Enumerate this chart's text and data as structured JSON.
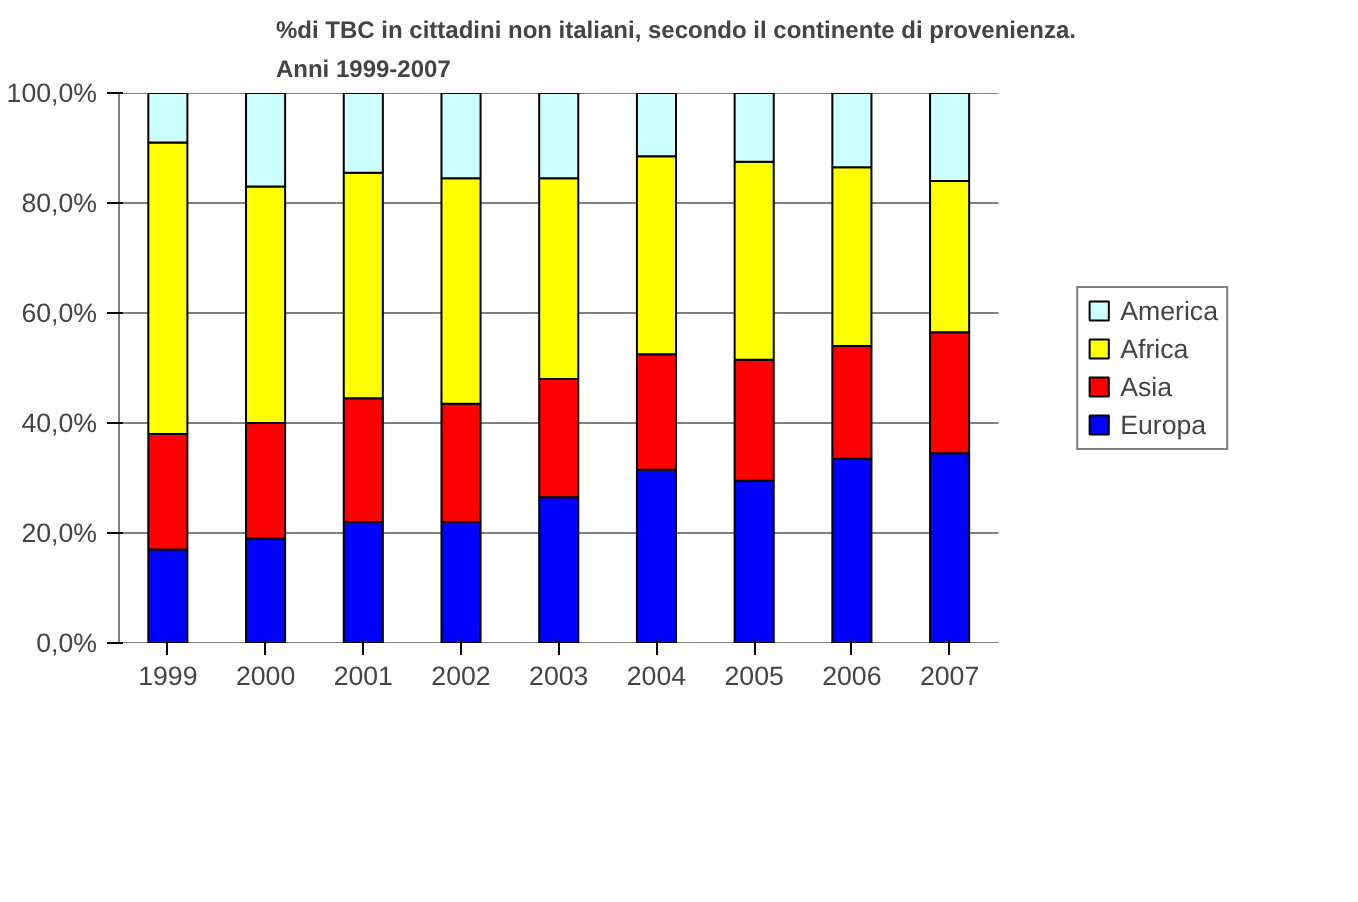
{
  "chart_data": {
    "type": "bar",
    "stacked": true,
    "title": "%di TBC in cittadini non italiani, secondo il continente di provenienza.\nAnni 1999-2007",
    "categories": [
      "1999",
      "2000",
      "2001",
      "2002",
      "2003",
      "2004",
      "2005",
      "2006",
      "2007"
    ],
    "series": [
      {
        "name": "Europa",
        "color": "#0000ff",
        "values": [
          17,
          19,
          22,
          22,
          26.5,
          31.5,
          29.5,
          33.5,
          34.5
        ]
      },
      {
        "name": "Asia",
        "color": "#ff0000",
        "values": [
          21,
          21,
          22.5,
          21.5,
          21.5,
          21,
          22,
          20.5,
          22
        ]
      },
      {
        "name": "Africa",
        "color": "#ffff00",
        "values": [
          53,
          43,
          41,
          41,
          36.5,
          36,
          36,
          32.5,
          27.5
        ]
      },
      {
        "name": "America",
        "color": "#ccffff",
        "values": [
          9,
          17,
          14.5,
          15.5,
          15.5,
          11.5,
          12.5,
          13.5,
          16
        ]
      }
    ],
    "ylim": [
      0,
      100
    ],
    "yticks": [
      {
        "value": 0,
        "label": "0,0%"
      },
      {
        "value": 20,
        "label": "20,0%"
      },
      {
        "value": 40,
        "label": "40,0%"
      },
      {
        "value": 60,
        "label": "60,0%"
      },
      {
        "value": 80,
        "label": "80,0%"
      },
      {
        "value": 100,
        "label": "100,0%"
      }
    ],
    "grid": "y",
    "legend": "right"
  }
}
